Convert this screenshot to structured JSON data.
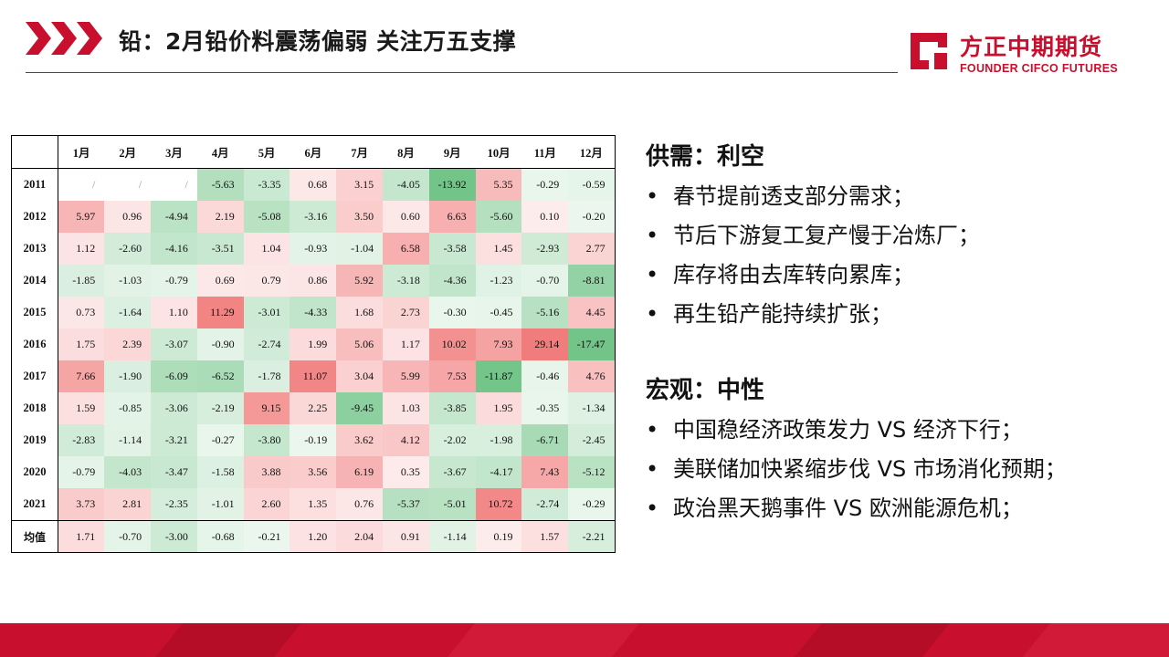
{
  "page": {
    "title": "铅：2月铅价料震荡偏弱  关注万五支撑"
  },
  "logo": {
    "cn": "方正中期期货",
    "en": "FOUNDER CIFCO FUTURES"
  },
  "colors": {
    "brand_red": "#c8102e",
    "positive_scale": "#f07b7b",
    "negative_scale": "#63be7b"
  },
  "table": {
    "corner": "",
    "months": [
      "1月",
      "2月",
      "3月",
      "4月",
      "5月",
      "6月",
      "7月",
      "8月",
      "9月",
      "10月",
      "11月",
      "12月"
    ],
    "rows": [
      {
        "label": "2011",
        "cells": [
          "/",
          "/",
          "/",
          "-5.63",
          "-3.35",
          "0.68",
          "3.15",
          "-4.05",
          "-13.92",
          "5.35",
          "-0.29",
          "-0.59"
        ]
      },
      {
        "label": "2012",
        "cells": [
          "5.97",
          "0.96",
          "-4.94",
          "2.19",
          "-5.08",
          "-3.16",
          "3.50",
          "0.60",
          "6.63",
          "-5.60",
          "0.10",
          "-0.20"
        ]
      },
      {
        "label": "2013",
        "cells": [
          "1.12",
          "-2.60",
          "-4.16",
          "-3.51",
          "1.04",
          "-0.93",
          "-1.04",
          "6.58",
          "-3.58",
          "1.45",
          "-2.93",
          "2.77"
        ]
      },
      {
        "label": "2014",
        "cells": [
          "-1.85",
          "-1.03",
          "-0.79",
          "0.69",
          "0.79",
          "0.86",
          "5.92",
          "-3.18",
          "-4.36",
          "-1.23",
          "-0.70",
          "-8.81"
        ]
      },
      {
        "label": "2015",
        "cells": [
          "0.73",
          "-1.64",
          "1.10",
          "11.29",
          "-3.01",
          "-4.33",
          "1.68",
          "2.73",
          "-0.30",
          "-0.45",
          "-5.16",
          "4.45"
        ]
      },
      {
        "label": "2016",
        "cells": [
          "1.75",
          "2.39",
          "-3.07",
          "-0.90",
          "-2.74",
          "1.99",
          "5.06",
          "1.17",
          "10.02",
          "7.93",
          "29.14",
          "-17.47"
        ]
      },
      {
        "label": "2017",
        "cells": [
          "7.66",
          "-1.90",
          "-6.09",
          "-6.52",
          "-1.78",
          "11.07",
          "3.04",
          "5.99",
          "7.53",
          "-11.87",
          "-0.46",
          "4.76"
        ]
      },
      {
        "label": "2018",
        "cells": [
          "1.59",
          "-0.85",
          "-3.06",
          "-2.19",
          "9.15",
          "2.25",
          "-9.45",
          "1.03",
          "-3.85",
          "1.95",
          "-0.35",
          "-1.34"
        ]
      },
      {
        "label": "2019",
        "cells": [
          "-2.83",
          "-1.14",
          "-3.21",
          "-0.27",
          "-3.80",
          "-0.19",
          "3.62",
          "4.12",
          "-2.02",
          "-1.98",
          "-6.71",
          "-2.45"
        ]
      },
      {
        "label": "2020",
        "cells": [
          "-0.79",
          "-4.03",
          "-3.47",
          "-1.58",
          "3.88",
          "3.56",
          "6.19",
          "0.35",
          "-3.67",
          "-4.17",
          "7.43",
          "-5.12"
        ]
      },
      {
        "label": "2021",
        "cells": [
          "3.73",
          "2.81",
          "-2.35",
          "-1.01",
          "2.60",
          "1.35",
          "0.76",
          "-5.37",
          "-5.01",
          "10.72",
          "-2.74",
          "-0.29"
        ]
      },
      {
        "label": "均值",
        "cells": [
          "1.71",
          "-0.70",
          "-3.00",
          "-0.68",
          "-0.21",
          "1.20",
          "2.04",
          "0.91",
          "-1.14",
          "0.19",
          "1.57",
          "-2.21"
        ]
      }
    ]
  },
  "supply_demand": {
    "heading": "供需：利空",
    "bullet_symbol": "•",
    "items": [
      "春节提前透支部分需求；",
      "节后下游复工复产慢于冶炼厂；",
      "库存将由去库转向累库；",
      "再生铅产能持续扩张；"
    ]
  },
  "macro": {
    "heading": "宏观：中性",
    "bullet_symbol": "•",
    "items": [
      "中国稳经济政策发力 VS 经济下行；",
      "美联储加快紧缩步伐 VS 市场消化预期；",
      "政治黑天鹅事件 VS 欧洲能源危机；"
    ]
  }
}
